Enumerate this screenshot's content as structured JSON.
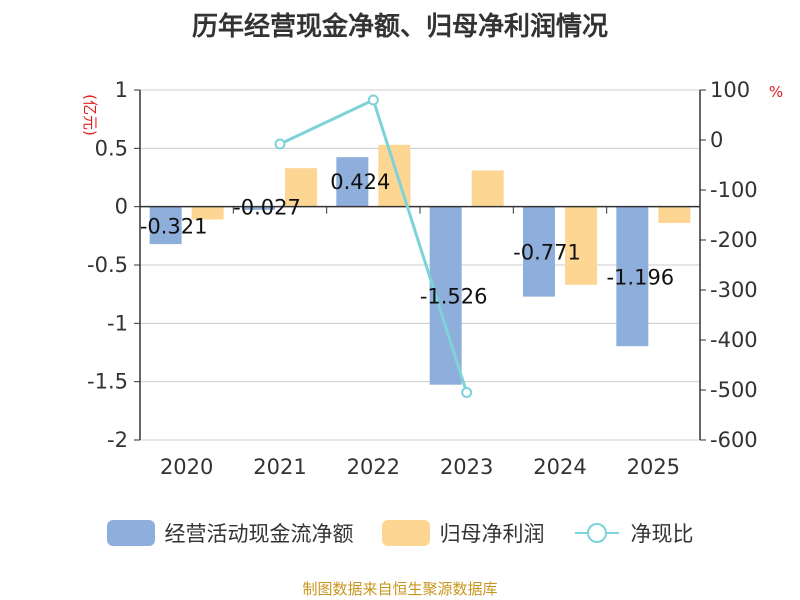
{
  "chart_data": {
    "type": "bar",
    "title": "历年经营现金净额、归母净利润情况",
    "categories": [
      "2020",
      "2021",
      "2022",
      "2023",
      "2024",
      "2025"
    ],
    "series": [
      {
        "name": "经营活动现金流净额",
        "axis": "left",
        "type": "bar",
        "color": "#8eaedb",
        "values": [
          -0.321,
          -0.027,
          0.424,
          -1.526,
          -0.771,
          -1.196
        ],
        "labels": [
          "-0.321",
          "-0.027",
          "0.424",
          "-1.526",
          "-0.771",
          "-1.196"
        ]
      },
      {
        "name": "归母净利润",
        "axis": "left",
        "type": "bar",
        "color": "#fed694",
        "values": [
          -0.11,
          0.33,
          0.53,
          0.31,
          -0.67,
          -0.14
        ]
      },
      {
        "name": "净现比",
        "axis": "right",
        "type": "line",
        "color": "#7dd3d8",
        "values": [
          null,
          -8,
          80,
          -505,
          null,
          null
        ]
      }
    ],
    "y_left": {
      "unit": "(亿元)",
      "ylim": [
        -2,
        1
      ],
      "ticks": [
        1,
        0.5,
        0,
        -0.5,
        -1,
        -1.5,
        -2
      ],
      "tick_labels": [
        "1",
        "0.5",
        "0",
        "-0.5",
        "-1",
        "-1.5",
        "-2"
      ]
    },
    "y_right": {
      "unit": "%",
      "ylim": [
        -600,
        100
      ],
      "ticks": [
        100,
        0,
        -100,
        -200,
        -300,
        -400,
        -500,
        -600
      ],
      "tick_labels": [
        "100",
        "0",
        "-100",
        "-200",
        "-300",
        "-400",
        "-500",
        "-600"
      ]
    },
    "legend_position": "bottom",
    "source": "制图数据来自恒生聚源数据库"
  }
}
